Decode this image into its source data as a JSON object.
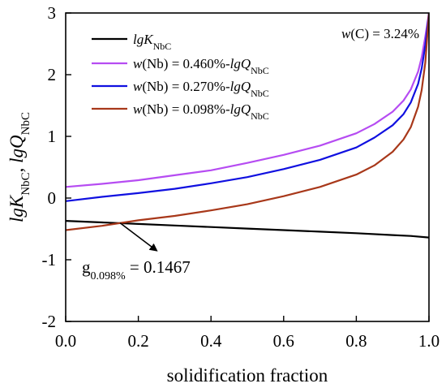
{
  "chart_data": {
    "type": "line",
    "xlabel": "solidification fraction",
    "ylabel": {
      "parts": [
        {
          "text": "lgK",
          "italic": true
        },
        {
          "text": "NbC",
          "sub": true
        },
        {
          "text": ", ",
          "italic": false
        },
        {
          "text": "lgQ",
          "italic": true
        },
        {
          "text": "NbC",
          "sub": true
        }
      ]
    },
    "xlim": [
      0.0,
      1.0
    ],
    "ylim": [
      -2,
      3
    ],
    "xticks": [
      "0.0",
      "0.2",
      "0.4",
      "0.6",
      "0.8",
      "1.0"
    ],
    "xtick_values": [
      0.0,
      0.2,
      0.4,
      0.6,
      0.8,
      1.0
    ],
    "yticks": [
      "-2",
      "-1",
      "0",
      "1",
      "2",
      "3"
    ],
    "ytick_values": [
      -2,
      -1,
      0,
      1,
      2,
      3
    ],
    "grid": false,
    "legend_position": "top-left",
    "series": [
      {
        "legend": [
          {
            "text": "lgK",
            "italic": true
          },
          {
            "text": "NbC",
            "sub": true
          }
        ],
        "color": "#000000",
        "x": [
          0.0,
          0.1,
          0.2,
          0.3,
          0.4,
          0.5,
          0.6,
          0.7,
          0.8,
          0.9,
          0.95,
          1.0
        ],
        "y": [
          -0.37,
          -0.395,
          -0.42,
          -0.445,
          -0.47,
          -0.495,
          -0.52,
          -0.545,
          -0.57,
          -0.6,
          -0.615,
          -0.64
        ]
      },
      {
        "legend": [
          {
            "text": "w",
            "italic": true
          },
          {
            "text": "(Nb) = 0.460%-",
            "italic": false
          },
          {
            "text": "lgQ",
            "italic": true
          },
          {
            "text": "NbC",
            "sub": true
          }
        ],
        "color": "#b64cf2",
        "x": [
          0.0,
          0.1,
          0.2,
          0.3,
          0.4,
          0.5,
          0.6,
          0.7,
          0.8,
          0.85,
          0.9,
          0.93,
          0.95,
          0.97,
          0.98,
          0.99,
          1.0
        ],
        "y": [
          0.18,
          0.23,
          0.29,
          0.37,
          0.45,
          0.57,
          0.7,
          0.85,
          1.05,
          1.2,
          1.4,
          1.58,
          1.76,
          2.05,
          2.28,
          2.62,
          3.0
        ]
      },
      {
        "legend": [
          {
            "text": "w",
            "italic": true
          },
          {
            "text": "(Nb) = 0.270%-",
            "italic": false
          },
          {
            "text": "lgQ",
            "italic": true
          },
          {
            "text": "NbC",
            "sub": true
          }
        ],
        "color": "#1010e0",
        "x": [
          0.0,
          0.1,
          0.2,
          0.3,
          0.4,
          0.5,
          0.6,
          0.7,
          0.8,
          0.85,
          0.9,
          0.93,
          0.95,
          0.97,
          0.98,
          0.99,
          1.0
        ],
        "y": [
          -0.05,
          0.02,
          0.08,
          0.15,
          0.24,
          0.34,
          0.47,
          0.62,
          0.82,
          0.98,
          1.18,
          1.36,
          1.55,
          1.85,
          2.1,
          2.48,
          3.0
        ]
      },
      {
        "legend": [
          {
            "text": "w",
            "italic": true
          },
          {
            "text": "(Nb) = 0.098%-",
            "italic": false
          },
          {
            "text": "lgQ",
            "italic": true
          },
          {
            "text": "NbC",
            "sub": true
          }
        ],
        "color": "#a8381a",
        "x": [
          0.0,
          0.1,
          0.2,
          0.3,
          0.4,
          0.5,
          0.6,
          0.7,
          0.8,
          0.85,
          0.9,
          0.93,
          0.95,
          0.97,
          0.98,
          0.99,
          1.0
        ],
        "y": [
          -0.52,
          -0.45,
          -0.36,
          -0.29,
          -0.2,
          -0.1,
          0.03,
          0.18,
          0.38,
          0.53,
          0.75,
          0.95,
          1.15,
          1.48,
          1.75,
          2.2,
          3.0
        ]
      }
    ],
    "annotations": [
      {
        "id": "wc",
        "parts": [
          {
            "text": "w",
            "italic": true
          },
          {
            "text": "(C) = 3.24%",
            "italic": false
          }
        ]
      },
      {
        "id": "g",
        "parts": [
          {
            "text": "g",
            "italic": false
          },
          {
            "text": "0.098%",
            "sub": true
          },
          {
            "text": " = 0.1467",
            "italic": false
          }
        ],
        "arrow_from": [
          0.15,
          -0.405
        ],
        "arrow_to": [
          0.25,
          -0.85
        ]
      }
    ]
  }
}
